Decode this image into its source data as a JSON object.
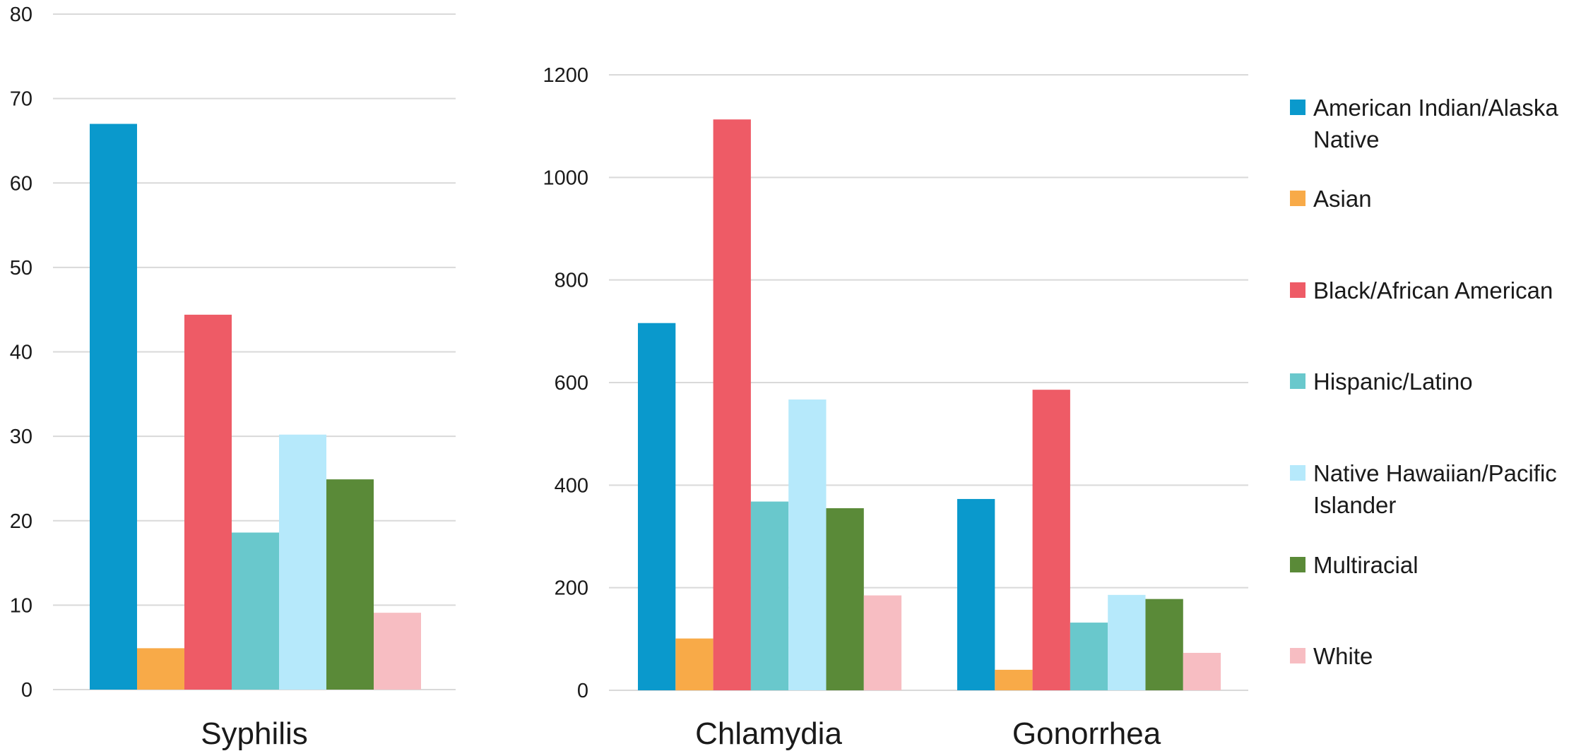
{
  "legend": [
    {
      "lines": [
        "American Indian/Alaska",
        "Native"
      ],
      "color": "#0a99cc"
    },
    {
      "lines": [
        "Asian"
      ],
      "color": "#f8aa48"
    },
    {
      "lines": [
        "Black/African American"
      ],
      "color": "#ee5b66"
    },
    {
      "lines": [
        "Hispanic/Latino"
      ],
      "color": "#69c8cc"
    },
    {
      "lines": [
        "Native Hawaiian/Pacific",
        "Islander"
      ],
      "color": "#b6e9fb"
    },
    {
      "lines": [
        "Multiracial"
      ],
      "color": "#5a8a38"
    },
    {
      "lines": [
        "White"
      ],
      "color": "#f7bdc2"
    }
  ],
  "chart_data": [
    {
      "type": "bar",
      "categories": [
        "Syphilis"
      ],
      "ylim": [
        0,
        80
      ],
      "yticks": [
        0,
        10,
        20,
        30,
        40,
        50,
        60,
        70,
        80
      ],
      "series": [
        {
          "name": "American Indian/Alaska Native",
          "values": [
            67.0
          ]
        },
        {
          "name": "Asian",
          "values": [
            4.9
          ]
        },
        {
          "name": "Black/African American",
          "values": [
            44.4
          ]
        },
        {
          "name": "Hispanic/Latino",
          "values": [
            18.6
          ]
        },
        {
          "name": "Native Hawaiian/Pacific Islander",
          "values": [
            30.2
          ]
        },
        {
          "name": "Multiracial",
          "values": [
            24.9
          ]
        },
        {
          "name": "White",
          "values": [
            9.1
          ]
        }
      ]
    },
    {
      "type": "bar",
      "categories": [
        "Chlamydia",
        "Gonorrhea"
      ],
      "ylim": [
        0,
        1200
      ],
      "yticks": [
        0,
        200,
        400,
        600,
        800,
        1000,
        1200
      ],
      "series": [
        {
          "name": "American Indian/Alaska Native",
          "values": [
            716,
            373
          ]
        },
        {
          "name": "Asian",
          "values": [
            101,
            40
          ]
        },
        {
          "name": "Black/African American",
          "values": [
            1113,
            586
          ]
        },
        {
          "name": "Hispanic/Latino",
          "values": [
            368,
            132
          ]
        },
        {
          "name": "Native Hawaiian/Pacific Islander",
          "values": [
            567,
            186
          ]
        },
        {
          "name": "Multiracial",
          "values": [
            355,
            178
          ]
        },
        {
          "name": "White",
          "values": [
            185,
            73
          ]
        }
      ]
    }
  ]
}
